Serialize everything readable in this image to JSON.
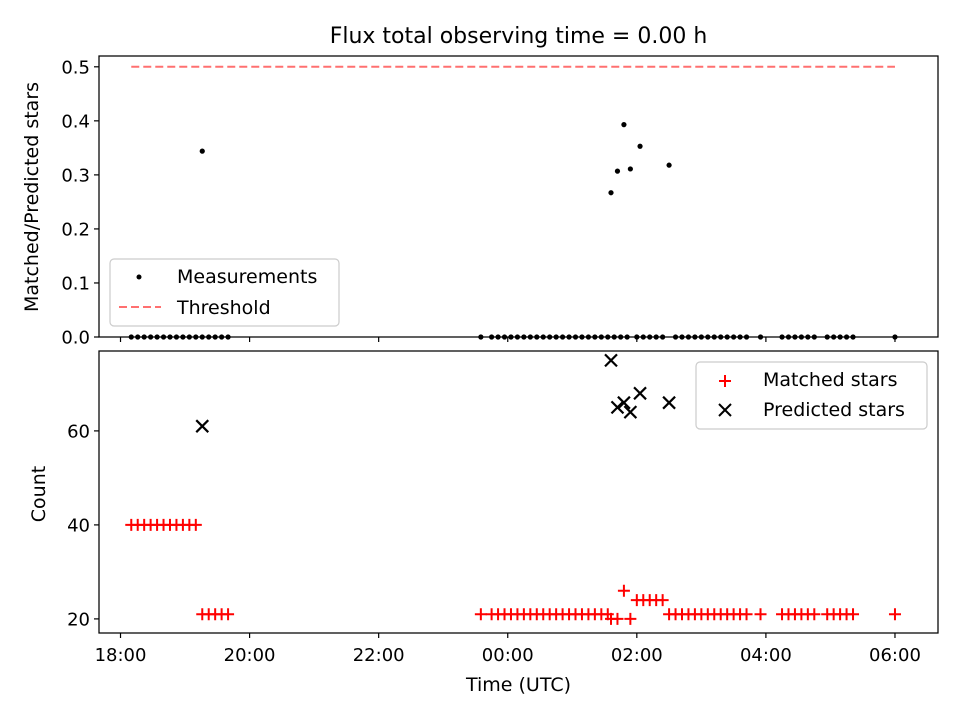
{
  "chart_data": [
    {
      "type": "scatter",
      "title": "Flux total observing time = 0.00 h",
      "ylabel": "Matched/Predicted stars",
      "xlabel": "",
      "xlim": [
        "17:40",
        "06:40"
      ],
      "ylim": [
        0,
        0.52
      ],
      "yticks": [
        "0.0",
        "0.1",
        "0.2",
        "0.3",
        "0.4",
        "0.5"
      ],
      "legend_position": "lower-left",
      "series": [
        {
          "name": "Measurements",
          "marker": "dot",
          "color": "#000000",
          "x": [
            "18:10",
            "18:16",
            "18:22",
            "18:28",
            "18:34",
            "18:40",
            "18:46",
            "18:52",
            "18:58",
            "19:04",
            "19:10",
            "19:16",
            "19:22",
            "19:28",
            "19:34",
            "19:40",
            "23:35",
            "23:45",
            "23:51",
            "23:57",
            "00:03",
            "00:09",
            "00:15",
            "00:21",
            "00:27",
            "00:33",
            "00:39",
            "00:45",
            "00:51",
            "00:57",
            "01:03",
            "01:09",
            "01:15",
            "01:21",
            "01:27",
            "01:33",
            "01:39",
            "01:45",
            "01:51",
            "02:00",
            "02:06",
            "02:12",
            "02:18",
            "02:24",
            "02:36",
            "02:42",
            "02:48",
            "02:54",
            "03:00",
            "03:06",
            "03:12",
            "03:18",
            "03:24",
            "03:30",
            "03:36",
            "03:42",
            "03:55",
            "04:15",
            "04:21",
            "04:27",
            "04:33",
            "04:39",
            "04:45",
            "04:57",
            "05:03",
            "05:09",
            "05:15",
            "05:21",
            "06:00",
            "19:16",
            "01:36",
            "01:42",
            "01:48",
            "01:54",
            "02:03",
            "02:30"
          ],
          "y": [
            0,
            0,
            0,
            0,
            0,
            0,
            0,
            0,
            0,
            0,
            0,
            0,
            0,
            0,
            0,
            0,
            0,
            0,
            0,
            0,
            0,
            0,
            0,
            0,
            0,
            0,
            0,
            0,
            0,
            0,
            0,
            0,
            0,
            0,
            0,
            0,
            0,
            0,
            0,
            0,
            0,
            0,
            0,
            0,
            0,
            0,
            0,
            0,
            0,
            0,
            0,
            0,
            0,
            0,
            0,
            0,
            0,
            0,
            0,
            0,
            0,
            0,
            0,
            0,
            0,
            0,
            0,
            0,
            0,
            0.344,
            0.267,
            0.307,
            0.393,
            0.311,
            0.353,
            0.318
          ]
        },
        {
          "name": "Threshold",
          "style": "dashed-line",
          "color": "#ff7070",
          "x": [
            "18:10",
            "06:00"
          ],
          "y": [
            0.5,
            0.5
          ]
        }
      ]
    },
    {
      "type": "scatter",
      "xlabel": "Time (UTC)",
      "ylabel": "Count",
      "xlim": [
        "17:40",
        "06:40"
      ],
      "ylim": [
        17,
        77
      ],
      "xticks": [
        "18:00",
        "20:00",
        "22:00",
        "00:00",
        "02:00",
        "04:00",
        "06:00"
      ],
      "yticks": [
        "20",
        "40",
        "60"
      ],
      "legend_position": "top-right",
      "series": [
        {
          "name": "Matched stars",
          "marker": "plus",
          "color": "#ff0000",
          "x": [
            "18:10",
            "18:16",
            "18:22",
            "18:28",
            "18:34",
            "18:40",
            "18:46",
            "18:52",
            "18:58",
            "19:04",
            "19:10",
            "19:16",
            "19:22",
            "19:28",
            "19:34",
            "19:40",
            "23:35",
            "23:45",
            "23:51",
            "23:57",
            "00:03",
            "00:09",
            "00:15",
            "00:21",
            "00:27",
            "00:33",
            "00:39",
            "00:45",
            "00:51",
            "00:57",
            "01:03",
            "01:09",
            "01:15",
            "01:21",
            "01:27",
            "01:33",
            "01:36",
            "01:42",
            "01:48",
            "01:54",
            "02:00",
            "02:06",
            "02:12",
            "02:18",
            "02:24",
            "02:30",
            "02:36",
            "02:42",
            "02:48",
            "02:54",
            "03:00",
            "03:06",
            "03:12",
            "03:18",
            "03:24",
            "03:30",
            "03:36",
            "03:42",
            "03:55",
            "04:15",
            "04:21",
            "04:27",
            "04:33",
            "04:39",
            "04:45",
            "04:57",
            "05:03",
            "05:09",
            "05:15",
            "05:21",
            "06:00"
          ],
          "y": [
            40,
            40,
            40,
            40,
            40,
            40,
            40,
            40,
            40,
            40,
            40,
            21,
            21,
            21,
            21,
            21,
            21,
            21,
            21,
            21,
            21,
            21,
            21,
            21,
            21,
            21,
            21,
            21,
            21,
            21,
            21,
            21,
            21,
            21,
            21,
            21,
            20,
            20,
            26,
            20,
            24,
            24,
            24,
            24,
            24,
            21,
            21,
            21,
            21,
            21,
            21,
            21,
            21,
            21,
            21,
            21,
            21,
            21,
            21,
            21,
            21,
            21,
            21,
            21,
            21,
            21,
            21,
            21,
            21,
            21,
            21
          ]
        },
        {
          "name": "Predicted stars",
          "marker": "x",
          "color": "#000000",
          "x": [
            "19:16",
            "01:36",
            "01:42",
            "01:48",
            "01:54",
            "02:03",
            "02:30"
          ],
          "y": [
            61,
            75,
            65,
            66,
            64,
            68,
            66
          ]
        }
      ]
    }
  ]
}
